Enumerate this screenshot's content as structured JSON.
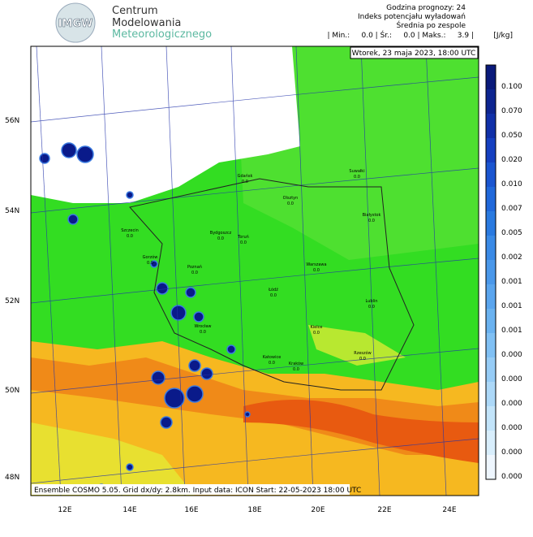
{
  "header": {
    "logo": "IMGW",
    "org": [
      "Centrum",
      "Modelowania",
      "Meteorologicznego"
    ],
    "info": [
      "Godzina prognozy: 24",
      "Indeks potencjału wyładowań",
      "Średnia po zespole"
    ],
    "stats": "| Min.:     0.0 | Śr.:     0.0 | Maks.:     3.9 |",
    "unit": "[J/kg]"
  },
  "map": {
    "date": "Wtorek, 23 maja 2023, 18:00 UTC",
    "lat_labels": [
      "56N",
      "54N",
      "52N",
      "50N",
      "48N"
    ],
    "lon_labels": [
      "12E",
      "14E",
      "16E",
      "18E",
      "20E",
      "22E",
      "24E"
    ],
    "cities": [
      {
        "name": "Gdańsk",
        "value": "0.0"
      },
      {
        "name": "Olsztyn",
        "value": "0.0"
      },
      {
        "name": "Suwałki",
        "value": "0.0"
      },
      {
        "name": "Białystok",
        "value": "0.0"
      },
      {
        "name": "Szczecin",
        "value": "0.0"
      },
      {
        "name": "Bydgoszcz",
        "value": "0.0"
      },
      {
        "name": "Toruń",
        "value": "0.0"
      },
      {
        "name": "Gorzów",
        "value": "0.0"
      },
      {
        "name": "Poznań",
        "value": "0.0"
      },
      {
        "name": "Warszawa",
        "value": "0.0"
      },
      {
        "name": "Łódź",
        "value": "0.0"
      },
      {
        "name": "Lublin",
        "value": "0.0"
      },
      {
        "name": "Wrocław",
        "value": "0.0"
      },
      {
        "name": "Kielce",
        "value": "0.0"
      },
      {
        "name": "Katowice",
        "value": "0.0"
      },
      {
        "name": "Kraków",
        "value": "0.0"
      },
      {
        "name": "Rzeszów",
        "value": "0.0"
      }
    ],
    "footer": "Ensemble COSMO 5.05. Grid dx/dy: 2.8km. Input data: ICON Start: 22-05-2023 18:00 UTC"
  },
  "colorbar": {
    "labels": [
      "0.100",
      "0.070",
      "0.050",
      "0.020",
      "0.010",
      "0.007",
      "0.005",
      "0.002",
      "0.001",
      "0.001",
      "0.001",
      "0.000",
      "0.000",
      "0.000",
      "0.000",
      "0.000",
      "0.000"
    ],
    "colors": [
      "#0a1a7a",
      "#0d2590",
      "#1030a8",
      "#1540c0",
      "#1a55d0",
      "#2068da",
      "#2a7ae0",
      "#3a8ae6",
      "#4a98ea",
      "#5aa5ee",
      "#6ab2f0",
      "#80c0f4",
      "#96ccf6",
      "#acd8f8",
      "#c2e4fa",
      "#d8eefc",
      "#eef6fe"
    ]
  }
}
